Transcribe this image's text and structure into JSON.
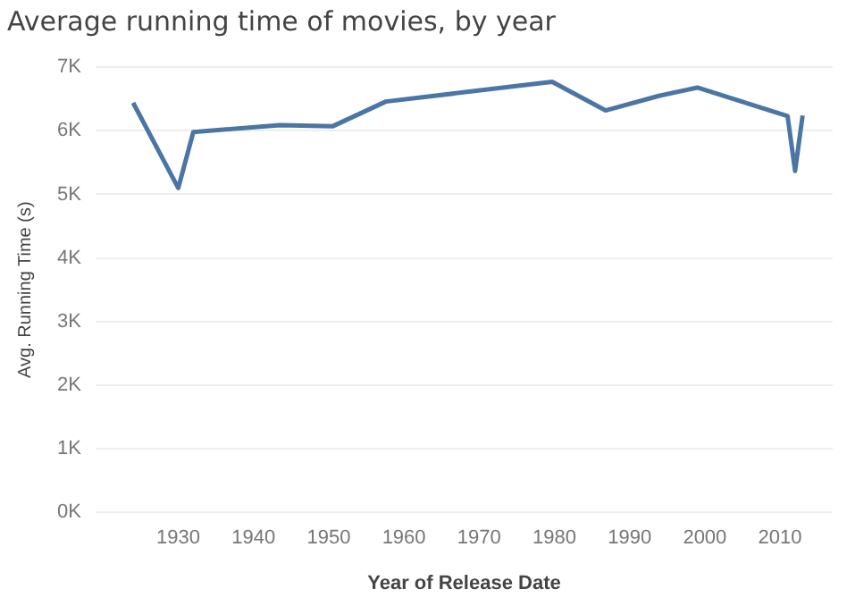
{
  "chart_data": {
    "type": "line",
    "title": "Average running time of movies, by year",
    "xlabel": "Year of Release Date",
    "ylabel": "Avg. Running Time (s)",
    "x": [
      1924,
      1930,
      1932,
      1943.5,
      1950.5,
      1957.6,
      1979.7,
      1986.8,
      1993.9,
      1999,
      2011,
      2012,
      2013
    ],
    "series": [
      {
        "color": "#4a75a5",
        "values": [
          6440,
          5100,
          5980,
          6090,
          6070,
          6460,
          6770,
          6320,
          6550,
          6680,
          6230,
          5370,
          6240
        ]
      }
    ],
    "xlim": [
      1919,
      2017
    ],
    "xticks": [
      1930,
      1940,
      1950,
      1960,
      1970,
      1980,
      1990,
      2000,
      2010
    ],
    "ylim": [
      0,
      7000
    ],
    "yticks": [
      {
        "value": 0,
        "label": "0K"
      },
      {
        "value": 1000,
        "label": "1K"
      },
      {
        "value": 2000,
        "label": "2K"
      },
      {
        "value": 3000,
        "label": "3K"
      },
      {
        "value": 4000,
        "label": "4K"
      },
      {
        "value": 5000,
        "label": "5K"
      },
      {
        "value": 6000,
        "label": "6K"
      },
      {
        "value": 7000,
        "label": "7K"
      }
    ],
    "grid": "y",
    "legend": false,
    "marker": "none",
    "line_style": "solid"
  }
}
